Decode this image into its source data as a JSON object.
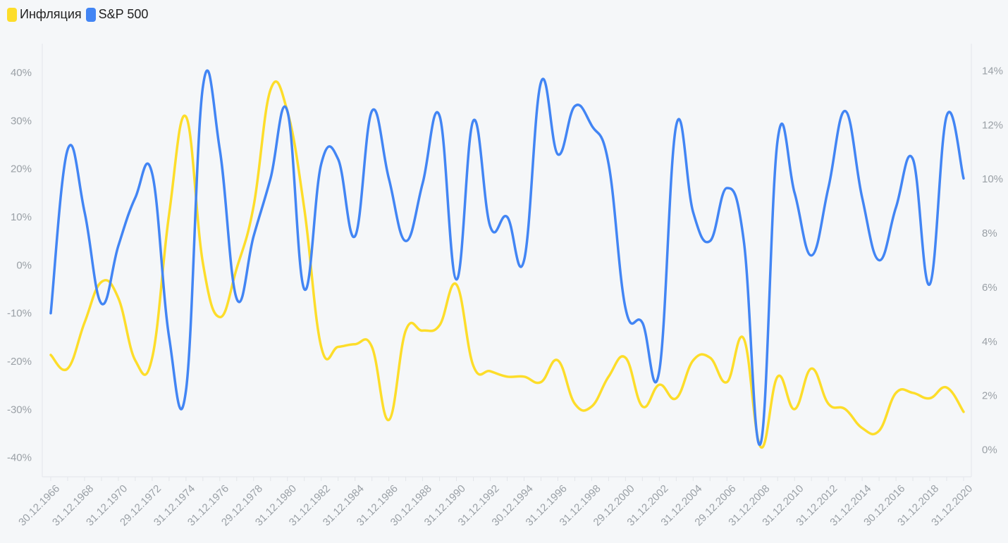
{
  "chart_data": {
    "type": "line",
    "legend_position": "top-left",
    "grid": false,
    "x": [
      "30.12.1966",
      "31.12.1967",
      "31.12.1968",
      "31.12.1969",
      "31.12.1970",
      "31.12.1971",
      "29.12.1972",
      "31.12.1973",
      "31.12.1974",
      "31.12.1975",
      "31.12.1976",
      "30.12.1977",
      "29.12.1978",
      "31.12.1979",
      "31.12.1980",
      "31.12.1981",
      "31.12.1982",
      "30.12.1983",
      "31.12.1984",
      "31.12.1985",
      "31.12.1986",
      "31.12.1987",
      "30.12.1988",
      "29.12.1989",
      "31.12.1990",
      "31.12.1991",
      "31.12.1992",
      "31.12.1993",
      "30.12.1994",
      "29.12.1995",
      "31.12.1996",
      "31.12.1997",
      "31.12.1998",
      "31.12.1999",
      "29.12.2000",
      "31.12.2001",
      "31.12.2002",
      "31.12.2003",
      "31.12.2004",
      "30.12.2005",
      "29.12.2006",
      "31.12.2007",
      "31.12.2008",
      "31.12.2009",
      "31.12.2010",
      "30.12.2011",
      "31.12.2012",
      "31.12.2013",
      "31.12.2014",
      "31.12.2015",
      "30.12.2016",
      "29.12.2017",
      "31.12.2018",
      "31.12.2019",
      "31.12.2020"
    ],
    "x_tick_labels": [
      "30.12.1966",
      "31.12.1968",
      "31.12.1970",
      "29.12.1972",
      "31.12.1974",
      "31.12.1976",
      "29.12.1978",
      "31.12.1980",
      "31.12.1982",
      "31.12.1984",
      "31.12.1986",
      "30.12.1988",
      "31.12.1990",
      "31.12.1992",
      "30.12.1994",
      "31.12.1996",
      "31.12.1998",
      "29.12.2000",
      "31.12.2002",
      "31.12.2004",
      "29.12.2006",
      "31.12.2008",
      "31.12.2010",
      "31.12.2012",
      "31.12.2014",
      "30.12.2016",
      "31.12.2018",
      "31.12.2020"
    ],
    "y_left": {
      "ticks": [
        40,
        30,
        20,
        10,
        0,
        -10,
        -20,
        -30,
        -40
      ],
      "tick_labels": [
        "40%",
        "30%",
        "20%",
        "10%",
        "0%",
        "-10%",
        "-20%",
        "-30%",
        "-40%"
      ],
      "range": [
        -44,
        46
      ]
    },
    "y_right": {
      "ticks": [
        14,
        12,
        10,
        8,
        6,
        4,
        2,
        0
      ],
      "tick_labels": [
        "14%",
        "12%",
        "10%",
        "8%",
        "6%",
        "4%",
        "2%",
        "0%"
      ],
      "range": [
        -1,
        15
      ]
    },
    "series": [
      {
        "name": "Инфляция",
        "axis": "right",
        "color": "#fddd2a",
        "values": [
          3.5,
          3.0,
          4.7,
          6.2,
          5.6,
          3.3,
          3.4,
          8.7,
          12.3,
          6.9,
          4.9,
          6.7,
          9.0,
          13.3,
          12.5,
          8.9,
          3.8,
          3.8,
          3.9,
          3.8,
          1.1,
          4.4,
          4.4,
          4.6,
          6.1,
          3.1,
          2.9,
          2.7,
          2.7,
          2.5,
          3.3,
          1.7,
          1.6,
          2.7,
          3.4,
          1.6,
          2.4,
          1.9,
          3.3,
          3.4,
          2.5,
          4.1,
          0.1,
          2.7,
          1.5,
          3.0,
          1.7,
          1.5,
          0.8,
          0.7,
          2.1,
          2.1,
          1.9,
          2.3,
          1.4
        ]
      },
      {
        "name": "S&P 500",
        "axis": "left",
        "color": "#4285f4",
        "values": [
          -10,
          24,
          11,
          -8,
          4,
          14,
          19,
          -15,
          -26,
          37,
          24,
          -7,
          6,
          18,
          32,
          -5,
          21,
          22,
          6,
          32,
          18,
          5,
          17,
          31,
          -3,
          30,
          8,
          10,
          1,
          38,
          23,
          33,
          29,
          21,
          -9,
          -12,
          -22,
          29,
          11,
          5,
          16,
          5,
          -37,
          26,
          15,
          2,
          16,
          32,
          14,
          1,
          12,
          22,
          -4,
          31,
          18
        ]
      }
    ]
  }
}
